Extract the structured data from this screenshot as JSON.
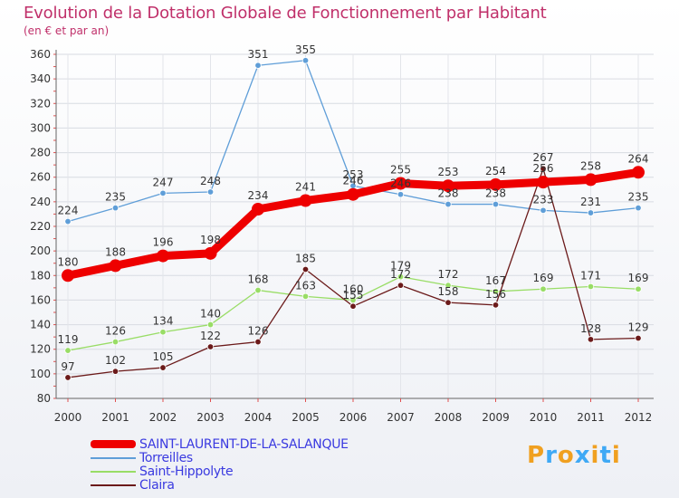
{
  "chart_data": {
    "type": "line",
    "title": "Evolution de la Dotation Globale de Fonctionnement par Habitant",
    "subtitle": "(en € et par an)",
    "xlabel": "",
    "ylabel": "",
    "categories": [
      "2000",
      "2001",
      "2002",
      "2003",
      "2004",
      "2005",
      "2006",
      "2007",
      "2008",
      "2009",
      "2010",
      "2011",
      "2012"
    ],
    "ylim": [
      80,
      360
    ],
    "yticks": [
      80,
      100,
      120,
      140,
      160,
      180,
      200,
      220,
      240,
      260,
      280,
      300,
      320,
      340,
      360
    ],
    "legend_position": "bottom-left",
    "series": [
      {
        "name": "SAINT-LAURENT-DE-LA-SALANQUE",
        "color": "#ee0000",
        "width": "thick",
        "values": [
          180,
          188,
          196,
          198,
          234,
          241,
          246,
          255,
          253,
          254,
          256,
          258,
          264
        ]
      },
      {
        "name": "Torreilles",
        "color": "#5f9ed8",
        "width": "thin",
        "values": [
          224,
          235,
          247,
          248,
          351,
          355,
          253,
          246,
          238,
          238,
          233,
          231,
          235
        ]
      },
      {
        "name": "Saint-Hippolyte",
        "color": "#99dd66",
        "width": "thin",
        "values": [
          119,
          126,
          134,
          140,
          168,
          163,
          160,
          179,
          172,
          167,
          169,
          171,
          169
        ]
      },
      {
        "name": "Claira",
        "color": "#6b1a1a",
        "width": "thin",
        "values": [
          97,
          102,
          105,
          122,
          126,
          185,
          155,
          172,
          158,
          156,
          267,
          128,
          129
        ]
      }
    ]
  },
  "brand": {
    "letters": [
      "P",
      "r",
      "o",
      "x",
      "i",
      "t",
      "i"
    ],
    "colors": [
      "#f0a020",
      "#3fa9f5",
      "#f0a020",
      "#3fa9f5",
      "#f0a020",
      "#3fa9f5",
      "#f0a020"
    ]
  }
}
